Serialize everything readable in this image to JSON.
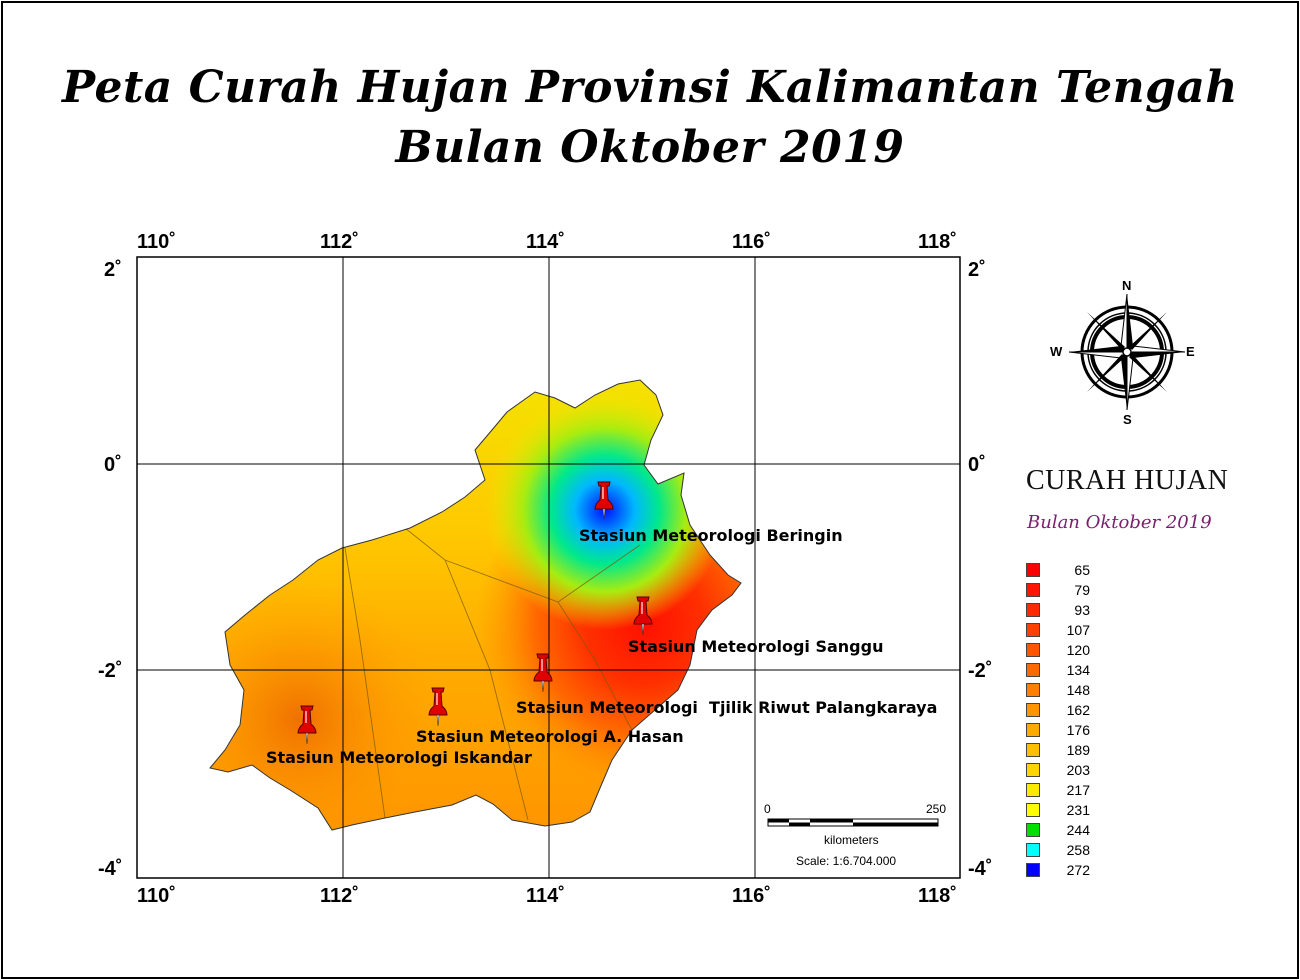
{
  "title": {
    "line1": "Peta Curah Hujan Provinsi Kalimantan Tengah",
    "line2": "Bulan Oktober 2019"
  },
  "map": {
    "longitude_ticks": [
      "110˚",
      "112˚",
      "114˚",
      "116˚",
      "118˚"
    ],
    "latitude_ticks": [
      "2˚",
      "0˚",
      "-2˚",
      "-4˚"
    ],
    "stations": [
      {
        "name": "Stasiun Meteorologi Beringin"
      },
      {
        "name": "Stasiun Meteorologi Sanggu"
      },
      {
        "name": "Stasiun Meteorologi  Tjilik Riwut Palangkaraya"
      },
      {
        "name": "Stasiun Meteorologi A. Hasan"
      },
      {
        "name": "Stasiun Meteorologi Iskandar"
      }
    ],
    "scale_bar": {
      "start": "0",
      "end": "250",
      "unit": "kilometers",
      "scale_text": "Scale: 1:6.704.000"
    },
    "compass": {
      "n": "N",
      "s": "S",
      "e": "E",
      "w": "W"
    }
  },
  "legend": {
    "title": "CURAH HUJAN",
    "subtitle": "Bulan Oktober 2019",
    "items": [
      {
        "value": "65",
        "color": "#ff0000"
      },
      {
        "value": "79",
        "color": "#ff1500"
      },
      {
        "value": "93",
        "color": "#ff2b00"
      },
      {
        "value": "107",
        "color": "#ff4000"
      },
      {
        "value": "120",
        "color": "#ff5500"
      },
      {
        "value": "134",
        "color": "#ff6a00"
      },
      {
        "value": "148",
        "color": "#ff8000"
      },
      {
        "value": "162",
        "color": "#ff9500"
      },
      {
        "value": "176",
        "color": "#ffaa00"
      },
      {
        "value": "189",
        "color": "#ffbf00"
      },
      {
        "value": "203",
        "color": "#ffd400"
      },
      {
        "value": "217",
        "color": "#ffea00"
      },
      {
        "value": "231",
        "color": "#ffff00"
      },
      {
        "value": "244",
        "color": "#00e000"
      },
      {
        "value": "258",
        "color": "#00ffff"
      },
      {
        "value": "272",
        "color": "#0000ff"
      }
    ]
  }
}
